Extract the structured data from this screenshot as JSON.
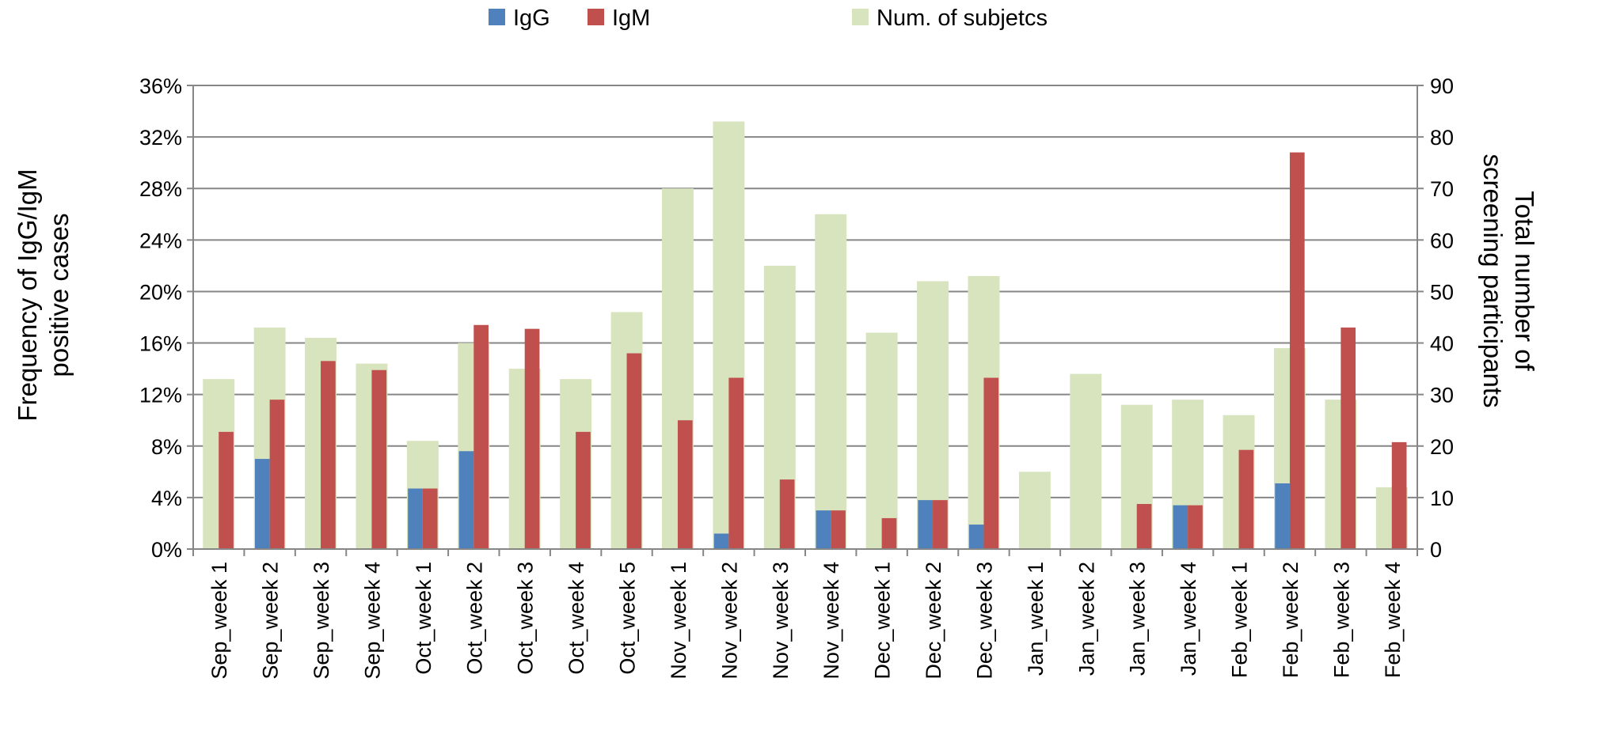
{
  "chart_data": {
    "type": "bar",
    "categories": [
      "Sep_week 1",
      "Sep_week 2",
      "Sep_week 3",
      "Sep_week 4",
      "Oct_week 1",
      "Oct_week 2",
      "Oct_week 3",
      "Oct_week 4",
      "Oct_week 5",
      "Nov_week 1",
      "Nov_week 2",
      "Nov_week 3",
      "Nov_week 4",
      "Dec_week 1",
      "Dec_week 2",
      "Dec_week 3",
      "Jan_week 1",
      "Jan_week 2",
      "Jan_week 3",
      "Jan_week 4",
      "Feb_week 1",
      "Feb_week 2",
      "Feb_week 3",
      "Feb_week 4"
    ],
    "series": [
      {
        "name": "IgG",
        "axis": "left",
        "unit": "percent",
        "values": [
          0,
          7.0,
          0,
          0,
          4.7,
          7.6,
          0,
          0,
          0,
          0,
          1.2,
          0,
          3.0,
          0,
          3.8,
          1.9,
          0,
          0,
          0,
          3.4,
          0,
          5.1,
          0,
          0
        ]
      },
      {
        "name": "IgM",
        "axis": "left",
        "unit": "percent",
        "values": [
          9.1,
          11.6,
          14.6,
          13.9,
          4.7,
          17.4,
          17.1,
          9.1,
          15.2,
          10.0,
          13.3,
          5.4,
          3.0,
          2.4,
          3.8,
          13.3,
          0,
          0,
          3.5,
          3.4,
          7.7,
          30.8,
          17.2,
          8.3
        ]
      },
      {
        "name": "Num. of subjetcs",
        "axis": "right",
        "values": [
          33,
          43,
          41,
          36,
          21,
          40,
          35,
          33,
          46,
          70,
          83,
          55,
          65,
          42,
          52,
          53,
          15,
          34,
          28,
          29,
          26,
          39,
          29,
          12
        ]
      }
    ],
    "y_left": {
      "label_lines": [
        "Frequency of IgG/IgM",
        "positive cases"
      ],
      "ylim": [
        0,
        36
      ],
      "ticks": [
        "0%",
        "4%",
        "8%",
        "12%",
        "16%",
        "20%",
        "24%",
        "28%",
        "32%",
        "36%"
      ]
    },
    "y_right": {
      "label_lines": [
        "Total number of",
        "screening participants"
      ],
      "ylim": [
        0,
        90
      ],
      "ticks": [
        "0",
        "10",
        "20",
        "30",
        "40",
        "50",
        "60",
        "70",
        "80",
        "90"
      ]
    },
    "grid": true,
    "legend_position": "top-center",
    "colors": {
      "IgG": "#4f81bd",
      "IgM": "#c0504d",
      "Num. of subjetcs": "#d7e4bd",
      "grid": "#868686",
      "axis": "#868686"
    }
  }
}
